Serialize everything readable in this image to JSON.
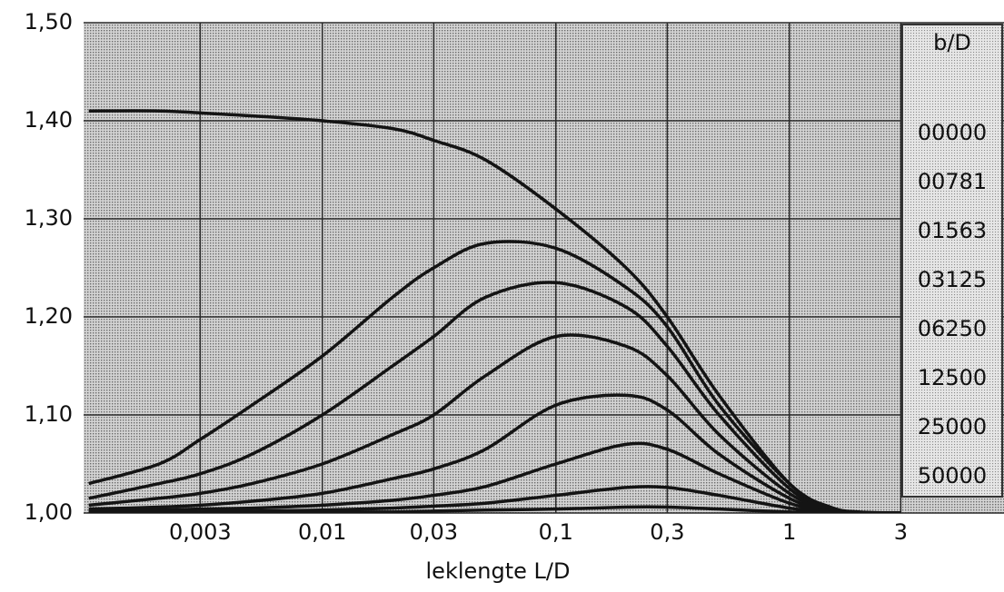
{
  "chart_data": {
    "type": "line",
    "x_label": "leklengte L/D",
    "x": [
      0.001,
      0.002,
      0.003,
      0.005,
      0.01,
      0.02,
      0.03,
      0.05,
      0.1,
      0.2,
      0.3,
      0.5,
      1,
      1.5,
      2,
      3
    ],
    "log_x": true,
    "xlim": [
      0.00095,
      8.3
    ],
    "xticks": [
      {
        "value": 0.003,
        "label": "0,003"
      },
      {
        "value": 0.01,
        "label": "0,01"
      },
      {
        "value": 0.03,
        "label": "0,03"
      },
      {
        "value": 0.1,
        "label": "0,1"
      },
      {
        "value": 0.3,
        "label": "0,3"
      },
      1,
      3
    ],
    "ylim": [
      1.0,
      1.5
    ],
    "yticks": [
      {
        "value": 1.0,
        "label": "1,00"
      },
      {
        "value": 1.1,
        "label": "1,10"
      },
      {
        "value": 1.2,
        "label": "1,20"
      },
      {
        "value": 1.3,
        "label": "1,30"
      },
      {
        "value": 1.4,
        "label": "1,40"
      },
      {
        "value": 1.5,
        "label": "1,50"
      }
    ],
    "grid": true,
    "legend_title": "b/D",
    "legend_position": "right",
    "series": [
      {
        "name": "00000",
        "color": "#141414",
        "values": [
          1.41,
          1.41,
          1.408,
          1.405,
          1.4,
          1.392,
          1.38,
          1.36,
          1.31,
          1.25,
          1.2,
          1.12,
          1.03,
          1.006,
          1.001,
          1.0
        ]
      },
      {
        "name": "00781",
        "color": "#141414",
        "values": [
          1.03,
          1.05,
          1.075,
          1.11,
          1.16,
          1.22,
          1.25,
          1.275,
          1.27,
          1.23,
          1.19,
          1.11,
          1.03,
          1.005,
          1.0,
          1.0
        ]
      },
      {
        "name": "01563",
        "color": "#141414",
        "values": [
          1.015,
          1.03,
          1.04,
          1.06,
          1.1,
          1.15,
          1.18,
          1.22,
          1.235,
          1.21,
          1.17,
          1.1,
          1.025,
          1.004,
          1.0,
          1.0
        ]
      },
      {
        "name": "03125",
        "color": "#141414",
        "values": [
          1.008,
          1.015,
          1.02,
          1.03,
          1.05,
          1.08,
          1.1,
          1.14,
          1.18,
          1.17,
          1.14,
          1.08,
          1.02,
          1.003,
          1.0,
          1.0
        ]
      },
      {
        "name": "06250",
        "color": "#141414",
        "values": [
          1.004,
          1.006,
          1.008,
          1.012,
          1.02,
          1.035,
          1.045,
          1.065,
          1.11,
          1.12,
          1.105,
          1.06,
          1.015,
          1.002,
          1.0,
          1.0
        ]
      },
      {
        "name": "12500",
        "color": "#141414",
        "values": [
          1.002,
          1.003,
          1.004,
          1.005,
          1.008,
          1.013,
          1.018,
          1.027,
          1.05,
          1.07,
          1.065,
          1.04,
          1.01,
          1.002,
          1.0,
          1.0
        ]
      },
      {
        "name": "25000",
        "color": "#141414",
        "values": [
          1.001,
          1.001,
          1.001,
          1.002,
          1.003,
          1.005,
          1.007,
          1.01,
          1.018,
          1.026,
          1.026,
          1.018,
          1.005,
          1.001,
          1.0,
          1.0
        ]
      },
      {
        "name": "50000",
        "color": "#141414",
        "values": [
          1.0,
          1.0,
          1.0,
          1.0,
          1.001,
          1.001,
          1.002,
          1.003,
          1.004,
          1.006,
          1.006,
          1.004,
          1.001,
          1.0,
          1.0,
          1.0
        ]
      }
    ]
  }
}
